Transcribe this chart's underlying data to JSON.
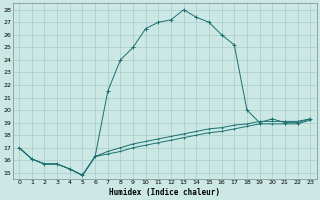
{
  "xlabel": "Humidex (Indice chaleur)",
  "ylabel": "",
  "background_color": "#cce8e5",
  "grid_color": "#aaccca",
  "line_color": "#1a7070",
  "xlim": [
    -0.5,
    23.5
  ],
  "ylim": [
    14.5,
    28.5
  ],
  "yticks": [
    15,
    16,
    17,
    18,
    19,
    20,
    21,
    22,
    23,
    24,
    25,
    26,
    27,
    28
  ],
  "xticks": [
    0,
    1,
    2,
    3,
    4,
    5,
    6,
    7,
    8,
    9,
    10,
    11,
    12,
    13,
    14,
    15,
    16,
    17,
    18,
    19,
    20,
    21,
    22,
    23
  ],
  "curve1_x": [
    0,
    1,
    2,
    3,
    4,
    5,
    6,
    7,
    8,
    9,
    10,
    11,
    12,
    13,
    14,
    15,
    16,
    17,
    18,
    19,
    20,
    21,
    22,
    23
  ],
  "curve1_y": [
    17.0,
    16.1,
    15.7,
    15.7,
    15.3,
    14.8,
    16.3,
    21.5,
    24.0,
    25.0,
    26.5,
    27.0,
    27.2,
    28.0,
    27.4,
    27.0,
    26.0,
    25.2,
    20.0,
    19.0,
    19.3,
    19.0,
    19.0,
    19.3
  ],
  "curve2_x": [
    0,
    1,
    2,
    3,
    4,
    5,
    6,
    7,
    8,
    9,
    10,
    11,
    12,
    13,
    14,
    15,
    16,
    17,
    18,
    19,
    20,
    21,
    22,
    23
  ],
  "curve2_y": [
    17.0,
    16.1,
    15.7,
    15.7,
    15.3,
    14.8,
    16.3,
    16.7,
    17.0,
    17.3,
    17.5,
    17.7,
    17.9,
    18.1,
    18.3,
    18.5,
    18.6,
    18.8,
    18.9,
    19.1,
    19.1,
    19.1,
    19.1,
    19.3
  ],
  "curve3_x": [
    0,
    1,
    2,
    3,
    4,
    5,
    6,
    7,
    8,
    9,
    10,
    11,
    12,
    13,
    14,
    15,
    16,
    17,
    18,
    19,
    20,
    21,
    22,
    23
  ],
  "curve3_y": [
    17.0,
    16.1,
    15.7,
    15.7,
    15.3,
    14.8,
    16.3,
    16.5,
    16.7,
    17.0,
    17.2,
    17.4,
    17.6,
    17.8,
    18.0,
    18.2,
    18.3,
    18.5,
    18.7,
    18.9,
    18.9,
    18.9,
    18.9,
    19.2
  ],
  "xlabel_fontsize": 5.5,
  "tick_fontsize": 4.5
}
